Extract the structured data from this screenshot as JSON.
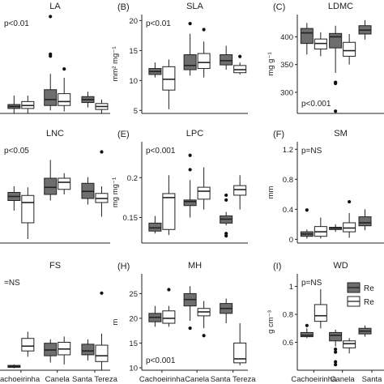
{
  "colors": {
    "remnant": "#6e6e6e",
    "restored": "#ffffff",
    "stroke": "#222222"
  },
  "legend": {
    "items": [
      "Re",
      "Re"
    ]
  },
  "chart_data": [
    {
      "type": "box",
      "letter": "",
      "title": "LA",
      "ptext": "p<0.01",
      "ylabel": "",
      "yticks": [],
      "ylim": [
        0,
        1
      ],
      "xcategories": [],
      "groups": [
        {
          "remnant": [
            0.0,
            0.05,
            0.07,
            0.09,
            0.18
          ],
          "restored": [
            0.0,
            0.05,
            0.08,
            0.12,
            0.18
          ],
          "out_rem": [],
          "out_res": []
        },
        {
          "remnant": [
            0.03,
            0.08,
            0.14,
            0.24,
            0.4
          ],
          "restored": [
            0.02,
            0.08,
            0.12,
            0.2,
            0.36
          ],
          "out_rem": [
            0.98,
            0.6,
            0.58
          ],
          "out_res": [
            0.45
          ]
        },
        {
          "remnant": [
            0.06,
            0.11,
            0.14,
            0.17,
            0.22
          ],
          "restored": [
            0.0,
            0.04,
            0.07,
            0.1,
            0.14
          ],
          "out_rem": [],
          "out_res": []
        }
      ]
    },
    {
      "type": "box",
      "letter": "(B)",
      "title": "SLA",
      "ptext": "p<0.01",
      "ylabel": "mm² mg⁻¹",
      "yticks": [
        5,
        10,
        15,
        20
      ],
      "ylim": [
        4.5,
        21
      ],
      "xcategories": [],
      "groups": [
        {
          "remnant": [
            10.5,
            11.0,
            11.5,
            12.0,
            13.0
          ],
          "restored": [
            5.2,
            8.4,
            10.2,
            12.3,
            13.5
          ],
          "out_rem": [],
          "out_res": []
        },
        {
          "remnant": [
            10.8,
            11.8,
            12.5,
            14.3,
            17.8
          ],
          "restored": [
            10.5,
            12.0,
            13.0,
            14.5,
            16.5
          ],
          "out_rem": [
            19.5
          ],
          "out_res": [
            18.5
          ]
        },
        {
          "remnant": [
            11.8,
            12.6,
            13.3,
            14.3,
            15.8
          ],
          "restored": [
            11.0,
            11.3,
            11.8,
            12.5,
            13.0
          ],
          "out_rem": [],
          "out_res": [
            14.0
          ]
        }
      ]
    },
    {
      "type": "box",
      "letter": "(C)",
      "title": "LDMC",
      "ptext": "p<0.001",
      "ylabel": "mg g⁻¹",
      "yticks": [
        300,
        350,
        400
      ],
      "ylim": [
        262,
        440
      ],
      "xcategories": [],
      "groups": [
        {
          "remnant": [
            368,
            388,
            407,
            415,
            425
          ],
          "restored": [
            365,
            378,
            388,
            396,
            408
          ],
          "out_rem": [],
          "out_res": []
        },
        {
          "remnant": [
            335,
            380,
            400,
            406,
            420
          ],
          "restored": [
            350,
            365,
            375,
            390,
            405
          ],
          "out_rem": [
            318,
            316,
            266
          ],
          "out_res": []
        },
        {
          "remnant": [
            395,
            405,
            412,
            420,
            430
          ],
          "restored": [],
          "out_rem": [],
          "out_res": []
        }
      ]
    },
    {
      "type": "box",
      "letter": "",
      "title": "LNC",
      "ptext": "p<0.05",
      "ylabel": "",
      "yticks": [],
      "ylim": [
        0,
        1
      ],
      "xcategories": [],
      "groups": [
        {
          "remnant": [
            0.32,
            0.42,
            0.46,
            0.5,
            0.56
          ],
          "restored": [
            0.04,
            0.2,
            0.4,
            0.47,
            0.55
          ],
          "out_rem": [],
          "out_res": []
        },
        {
          "remnant": [
            0.42,
            0.48,
            0.55,
            0.64,
            0.82
          ],
          "restored": [
            0.48,
            0.53,
            0.6,
            0.64,
            0.69
          ],
          "out_rem": [],
          "out_res": []
        },
        {
          "remnant": [
            0.38,
            0.44,
            0.51,
            0.59,
            0.65
          ],
          "restored": [
            0.26,
            0.4,
            0.44,
            0.49,
            0.56
          ],
          "out_rem": [],
          "out_res": [
            0.9
          ]
        }
      ]
    },
    {
      "type": "box",
      "letter": "(E)",
      "title": "LPC",
      "ptext": "p<0.001",
      "ylabel": "mg mg⁻¹",
      "yticks": [
        0.15,
        0.2
      ],
      "ylim": [
        0.118,
        0.245
      ],
      "xcategories": [],
      "groups": [
        {
          "remnant": [
            0.13,
            0.133,
            0.137,
            0.143,
            0.152
          ],
          "restored": [
            0.128,
            0.135,
            0.175,
            0.18,
            0.203
          ],
          "out_rem": [],
          "out_res": []
        },
        {
          "remnant": [
            0.15,
            0.165,
            0.17,
            0.172,
            0.197
          ],
          "restored": [
            0.16,
            0.173,
            0.183,
            0.188,
            0.213
          ],
          "out_rem": [
            0.228,
            0.21
          ],
          "out_res": []
        },
        {
          "remnant": [
            0.14,
            0.143,
            0.148,
            0.152,
            0.157
          ],
          "restored": [
            0.16,
            0.178,
            0.185,
            0.19,
            0.203
          ],
          "out_rem": [
            0.178,
            0.172,
            0.13,
            0.127
          ],
          "out_res": []
        }
      ]
    },
    {
      "type": "box",
      "letter": "(F)",
      "title": "SM",
      "ptext": "p=NS",
      "ylabel": "mm",
      "yticks": [
        0.0,
        0.4,
        0.8,
        1.2
      ],
      "ylim": [
        -0.05,
        1.3
      ],
      "xcategories": [],
      "groups": [
        {
          "remnant": [
            0.01,
            0.04,
            0.07,
            0.1,
            0.13
          ],
          "restored": [
            0.01,
            0.04,
            0.1,
            0.17,
            0.29
          ],
          "out_rem": [
            0.39
          ],
          "out_res": []
        },
        {
          "remnant": [
            0.1,
            0.13,
            0.15,
            0.16,
            0.2
          ],
          "restored": [
            0.02,
            0.1,
            0.15,
            0.22,
            0.35
          ],
          "out_rem": [],
          "out_res": [
            0.5
          ]
        },
        {
          "remnant": [
            0.12,
            0.18,
            0.22,
            0.3,
            0.4
          ],
          "restored": [],
          "out_rem": [],
          "out_res": []
        }
      ]
    },
    {
      "type": "box",
      "letter": "",
      "title": "FS",
      "ptext": "=NS",
      "ylabel": "",
      "yticks": [],
      "ylim": [
        0,
        1
      ],
      "xcategories": [
        "achoeirinha",
        "Canela",
        "Santa Tereza"
      ],
      "groups": [
        {
          "remnant": [
            0.02,
            0.03,
            0.04,
            0.05,
            0.06
          ],
          "restored": [
            0.14,
            0.2,
            0.25,
            0.33,
            0.4
          ],
          "out_rem": [],
          "out_res": []
        },
        {
          "remnant": [
            0.08,
            0.15,
            0.21,
            0.28,
            0.32
          ],
          "restored": [
            0.06,
            0.16,
            0.22,
            0.29,
            0.35
          ],
          "out_rem": [],
          "out_res": []
        },
        {
          "remnant": [
            0.1,
            0.16,
            0.2,
            0.27,
            0.32
          ],
          "restored": [
            0.0,
            0.09,
            0.15,
            0.26,
            0.38
          ],
          "out_rem": [],
          "out_res": [
            0.8
          ]
        }
      ]
    },
    {
      "type": "box",
      "letter": "(H)",
      "title": "MH",
      "ptext": "p<0.001",
      "ylabel": "m",
      "yticks": [
        10,
        15,
        20,
        25
      ],
      "ylim": [
        9.5,
        29
      ],
      "xcategories": [
        "Cachoeirinha",
        "Canela",
        "Santa Tereza"
      ],
      "groups": [
        {
          "remnant": [
            18.3,
            19.3,
            20.2,
            21.0,
            22.5
          ],
          "restored": [
            18.3,
            19.0,
            20.0,
            21.5,
            22.5
          ],
          "out_rem": [],
          "out_res": [
            25.8
          ]
        },
        {
          "remnant": [
            19.5,
            22.5,
            23.8,
            25.0,
            26.5
          ],
          "restored": [
            18.0,
            20.5,
            21.3,
            22.0,
            23.5
          ],
          "out_rem": [
            18.0
          ],
          "out_res": [
            16.5
          ]
        },
        {
          "remnant": [
            19.0,
            21.0,
            22.0,
            23.0,
            24.0
          ],
          "restored": [
            10.5,
            11.0,
            11.8,
            15.0,
            19.0
          ],
          "out_rem": [],
          "out_res": []
        }
      ]
    },
    {
      "type": "box",
      "letter": "(I)",
      "title": "WD",
      "ptext": "p=NS",
      "ylabel": "g cm⁻³",
      "yticks": [
        0.6,
        0.8,
        1.0
      ],
      "ylim": [
        0.4,
        1.09
      ],
      "xcategories": [
        "Cachoeirinha",
        "Canela",
        "Santa"
      ],
      "groups": [
        {
          "remnant": [
            0.63,
            0.64,
            0.65,
            0.67,
            0.7
          ],
          "restored": [
            0.7,
            0.75,
            0.79,
            0.87,
            0.98
          ],
          "out_rem": [
            0.72
          ],
          "out_res": []
        },
        {
          "remnant": [
            0.57,
            0.61,
            0.65,
            0.67,
            0.69
          ],
          "restored": [
            0.52,
            0.56,
            0.59,
            0.61,
            0.63
          ],
          "out_rem": [
            0.55,
            0.53,
            0.46,
            0.44
          ],
          "out_res": []
        },
        {
          "remnant": [
            0.64,
            0.66,
            0.68,
            0.7,
            0.72
          ],
          "restored": [],
          "out_rem": [],
          "out_res": []
        }
      ]
    }
  ]
}
